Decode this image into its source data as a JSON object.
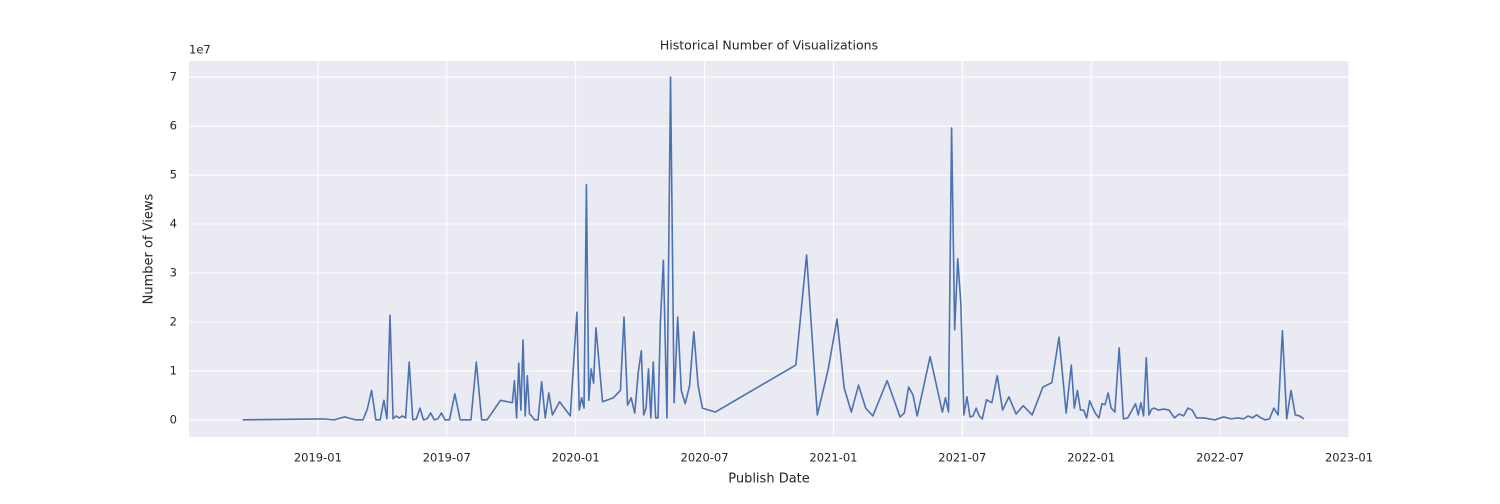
{
  "chart_data": {
    "type": "line",
    "title": "Historical Number of Visualizations",
    "x_label": "Publish Date",
    "y_label": "Number of Views",
    "y_offset_label": "1e7",
    "grid": true,
    "xlim": [
      "2018-07",
      "2023-01"
    ],
    "xticks": [
      "2019-01",
      "2019-07",
      "2020-01",
      "2020-07",
      "2021-01",
      "2021-07",
      "2022-01",
      "2022-07",
      "2023-01"
    ],
    "ylim": [
      -0.35,
      7.33
    ],
    "yticks": [
      0,
      1,
      2,
      3,
      4,
      5,
      6,
      7
    ],
    "x": [
      "2018-09",
      "2019-01",
      "2019-01",
      "2019-02",
      "2019-02",
      "2019-03",
      "2019-03",
      "2019-03",
      "2019-03",
      "2019-03",
      "2019-04",
      "2019-04",
      "2019-04",
      "2019-04",
      "2019-04",
      "2019-04",
      "2019-04",
      "2019-05",
      "2019-05",
      "2019-05",
      "2019-05",
      "2019-05",
      "2019-05",
      "2019-06",
      "2019-06",
      "2019-06",
      "2019-06",
      "2019-06",
      "2019-06",
      "2019-07",
      "2019-07",
      "2019-07",
      "2019-07",
      "2019-08",
      "2019-08",
      "2019-08",
      "2019-08",
      "2019-09",
      "2019-10",
      "2019-10",
      "2019-10",
      "2019-10",
      "2019-10",
      "2019-10",
      "2019-10",
      "2019-10",
      "2019-10",
      "2019-10",
      "2019-11",
      "2019-11",
      "2019-11",
      "2019-11",
      "2019-11",
      "2019-11",
      "2019-12",
      "2019-12",
      "2020-01",
      "2020-01",
      "2020-01",
      "2020-01",
      "2020-01",
      "2020-01",
      "2020-01",
      "2020-01",
      "2020-01",
      "2020-02",
      "2020-02",
      "2020-03",
      "2020-03",
      "2020-03",
      "2020-03",
      "2020-03",
      "2020-03",
      "2020-04",
      "2020-04",
      "2020-04",
      "2020-04",
      "2020-04",
      "2020-04",
      "2020-04",
      "2020-04",
      "2020-04",
      "2020-05",
      "2020-05",
      "2020-05",
      "2020-05",
      "2020-05",
      "2020-05",
      "2020-06",
      "2020-06",
      "2020-06",
      "2020-06",
      "2020-06",
      "2020-07",
      "2020-11",
      "2020-11",
      "2020-12",
      "2020-12",
      "2021-01",
      "2021-01",
      "2021-01",
      "2021-02",
      "2021-02",
      "2021-02",
      "2021-03",
      "2021-04",
      "2021-04",
      "2021-04",
      "2021-04",
      "2021-04",
      "2021-05",
      "2021-06",
      "2021-06",
      "2021-06",
      "2021-06",
      "2021-06",
      "2021-06",
      "2021-06",
      "2021-07",
      "2021-07",
      "2021-07",
      "2021-07",
      "2021-07",
      "2021-07",
      "2021-07",
      "2021-08",
      "2021-08",
      "2021-08",
      "2021-08",
      "2021-09",
      "2021-09",
      "2021-09",
      "2021-10",
      "2021-10",
      "2021-11",
      "2021-11",
      "2021-11",
      "2021-12",
      "2021-12",
      "2021-12",
      "2021-12",
      "2021-12",
      "2021-12",
      "2021-12",
      "2022-01",
      "2022-01",
      "2022-01",
      "2022-01",
      "2022-01",
      "2022-01",
      "2022-01",
      "2022-02",
      "2022-02",
      "2022-02",
      "2022-02",
      "2022-02",
      "2022-03",
      "2022-03",
      "2022-03",
      "2022-03",
      "2022-03",
      "2022-03",
      "2022-03",
      "2022-03",
      "2022-04",
      "2022-04",
      "2022-04",
      "2022-04",
      "2022-05",
      "2022-05",
      "2022-05",
      "2022-05",
      "2022-05",
      "2022-06",
      "2022-06",
      "2022-07",
      "2022-07",
      "2022-07",
      "2022-08",
      "2022-08",
      "2022-08",
      "2022-08",
      "2022-08",
      "2022-09",
      "2022-09",
      "2022-09",
      "2022-09",
      "2022-09",
      "2022-10",
      "2022-10",
      "2022-10",
      "2022-10",
      "2022-10"
    ],
    "series": [
      {
        "name": "Views",
        "color": "#4c72b0",
        "values": [
          0,
          0.02,
          0,
          0.06,
          0,
          0,
          0.22,
          0.6,
          0,
          0,
          0.4,
          0.02,
          2.14,
          0.02,
          0.08,
          0.04,
          0.08,
          0.04,
          1.18,
          0,
          0.02,
          0.24,
          0,
          0.02,
          0.14,
          0,
          0.02,
          0.14,
          0,
          0,
          0.53,
          0,
          0,
          0,
          1.18,
          0,
          0,
          0.4,
          0.35,
          0.8,
          0.04,
          1.16,
          0.2,
          1.63,
          0.08,
          0.9,
          0.12,
          0.08,
          0,
          0,
          0.78,
          0.04,
          0.55,
          0.1,
          0.37,
          0.08,
          2.2,
          0.2,
          0.45,
          0.24,
          4.8,
          0.4,
          1.04,
          0.75,
          1.88,
          0.37,
          0.45,
          0.6,
          2.1,
          0.3,
          0.45,
          0.14,
          0.98,
          1.41,
          0.1,
          0.24,
          1.04,
          0.04,
          1.18,
          0.04,
          0.04,
          2.0,
          3.26,
          0.04,
          7.0,
          0.35,
          2.1,
          0.6,
          0.33,
          0.69,
          1.8,
          0.7,
          0.24,
          0.16,
          1.12,
          3.37,
          0.1,
          1.02,
          2.06,
          0.65,
          0.16,
          0.71,
          0.24,
          0.08,
          0.8,
          0.06,
          0.14,
          0.67,
          0.51,
          0.08,
          1.29,
          0.16,
          0.45,
          0.16,
          5.96,
          1.84,
          3.29,
          2.39,
          0.1,
          0.47,
          0.06,
          0.08,
          0.24,
          0.08,
          0.02,
          0.41,
          0.35,
          0.9,
          0.2,
          0.47,
          0.12,
          0.29,
          0.1,
          0.67,
          0.76,
          1.69,
          0.14,
          1.12,
          0.24,
          0.6,
          0.2,
          0.2,
          0.04,
          0.39,
          0.24,
          0.12,
          0.04,
          0.33,
          0.31,
          0.55,
          0.24,
          0.16,
          1.47,
          0.02,
          0.04,
          0.2,
          0.33,
          0.1,
          0.35,
          0.08,
          1.27,
          0.1,
          0.22,
          0.24,
          0.2,
          0.22,
          0.2,
          0.04,
          0.12,
          0.08,
          0.24,
          0.2,
          0.04,
          0.04,
          0,
          0.06,
          0.02,
          0.04,
          0.02,
          0.08,
          0.04,
          0.1,
          0.04,
          0,
          0.02,
          0.24,
          0.1,
          1.82,
          0.02,
          0.6,
          0.1,
          0.08,
          0.02
        ]
      }
    ]
  }
}
